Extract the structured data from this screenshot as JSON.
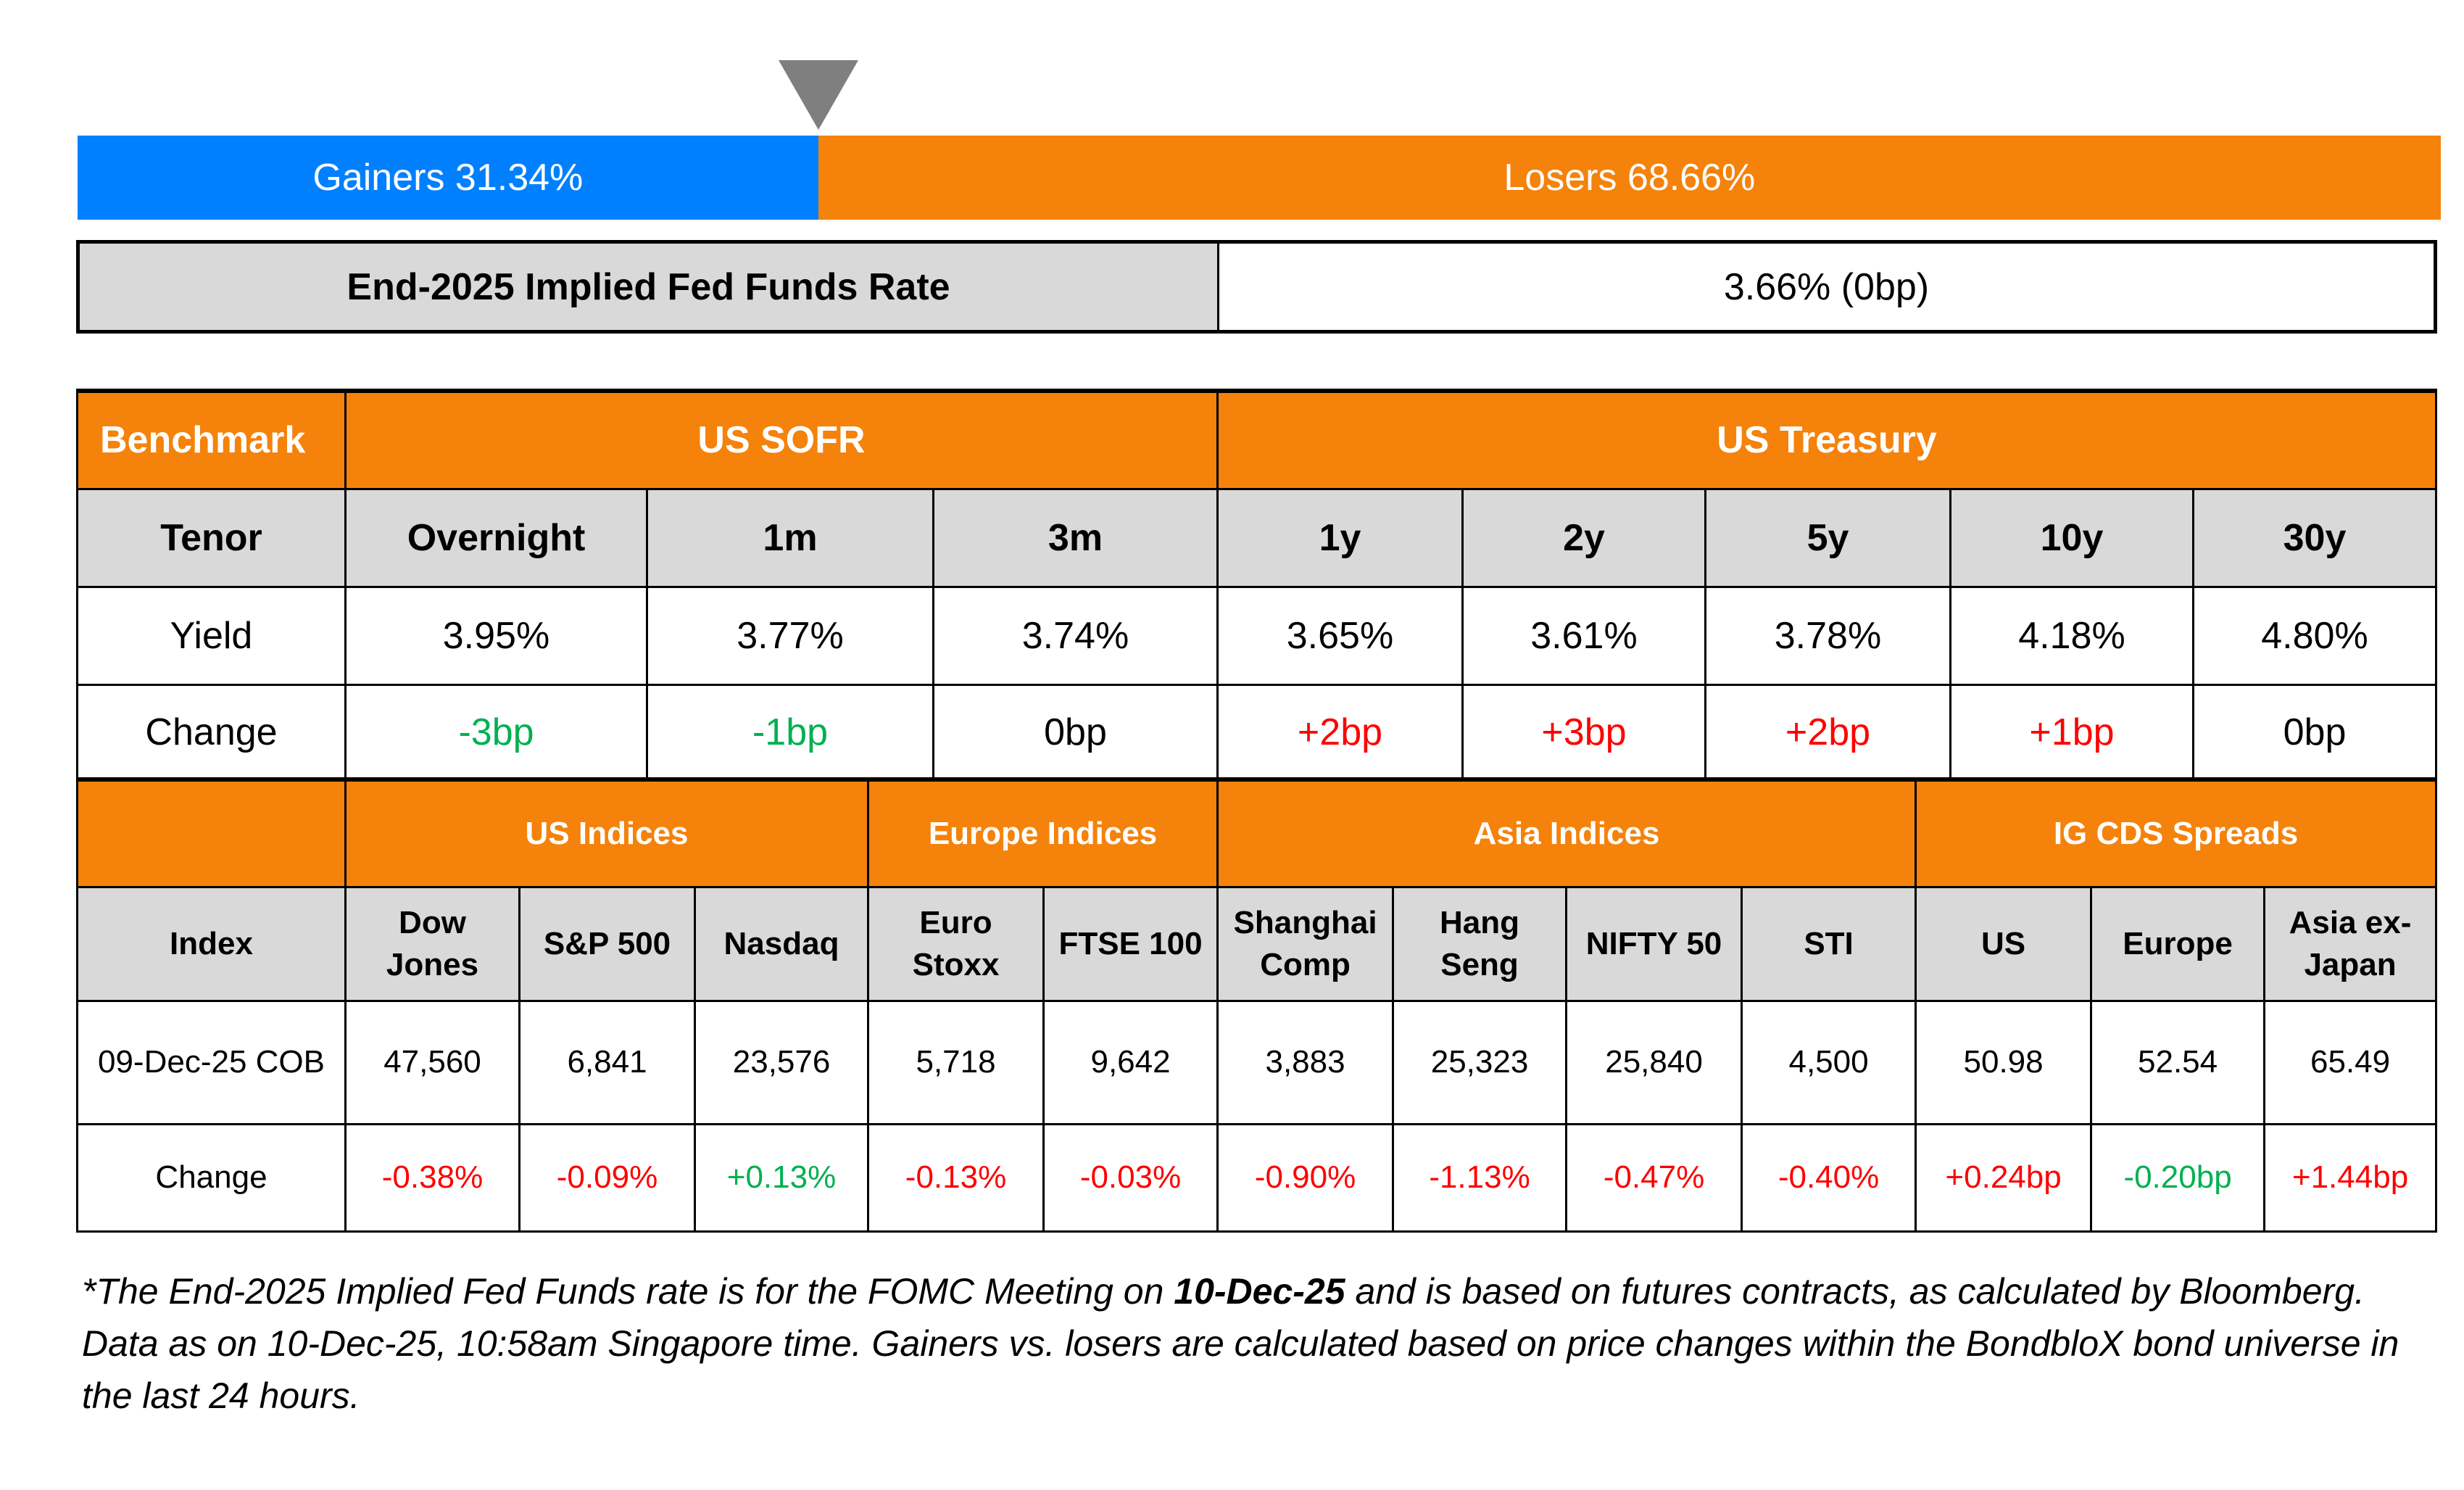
{
  "gainers_losers": {
    "gainers_label": "Gainers 31.34%",
    "losers_label": "Losers 68.66%",
    "gainers_pct": 31.34,
    "losers_pct": 68.66,
    "gainers_color": "#0080FF",
    "losers_color": "#F5820A"
  },
  "fed": {
    "label": "End-2025 Implied Fed Funds Rate",
    "value": "3.66% (0bp)"
  },
  "rates": {
    "benchmark_label": "Benchmark",
    "group1": "US SOFR",
    "group2": "US Treasury",
    "tenor_label": "Tenor",
    "tenors": [
      "Overnight",
      "1m",
      "3m",
      "1y",
      "2y",
      "5y",
      "10y",
      "30y"
    ],
    "yield_label": "Yield",
    "yields": [
      "3.95%",
      "3.77%",
      "3.74%",
      "3.65%",
      "3.61%",
      "3.78%",
      "4.18%",
      "4.80%"
    ],
    "change_label": "Change",
    "changes": [
      "-3bp",
      "-1bp",
      "0bp",
      "+2bp",
      "+3bp",
      "+2bp",
      "+1bp",
      "0bp"
    ]
  },
  "indices": {
    "groups": [
      "US Indices",
      "Europe Indices",
      "Asia Indices",
      "IG CDS Spreads"
    ],
    "index_label": "Index",
    "names": [
      [
        "Dow",
        "Jones"
      ],
      [
        "S&P 500"
      ],
      [
        "Nasdaq"
      ],
      [
        "Euro",
        "Stoxx"
      ],
      [
        "FTSE 100"
      ],
      [
        "Shanghai",
        "Comp"
      ],
      [
        "Hang",
        "Seng"
      ],
      [
        "NIFTY 50"
      ],
      [
        "STI"
      ],
      [
        "US"
      ],
      [
        "Europe"
      ],
      [
        "Asia ex-",
        "Japan"
      ]
    ],
    "date_label": "09-Dec-25 COB",
    "values": [
      "47,560",
      "6,841",
      "23,576",
      "5,718",
      "9,642",
      "3,883",
      "25,323",
      "25,840",
      "4,500",
      "50.98",
      "52.54",
      "65.49"
    ],
    "change_label": "Change",
    "changes": [
      "-0.38%",
      "-0.09%",
      "+0.13%",
      "-0.13%",
      "-0.03%",
      "-0.90%",
      "-1.13%",
      "-0.47%",
      "-0.40%",
      "+0.24bp",
      "-0.20bp",
      "+1.44bp"
    ]
  },
  "colors": {
    "up_red": "#FF0000",
    "down_green": "#00B050",
    "header_orange": "#F5820A",
    "subheader_gray": "#D9D9D9"
  },
  "footnote": {
    "part1": "*The End-2025 Implied Fed Funds rate is for the FOMC Meeting on ",
    "bold": "10-Dec-25",
    "part2": " and is based on futures contracts, as calculated by Bloomberg. Data as on 10-Dec-25, 10:58am Singapore time. Gainers vs. losers are calculated based on price changes within the BondbloX bond universe in the last 24 hours."
  }
}
